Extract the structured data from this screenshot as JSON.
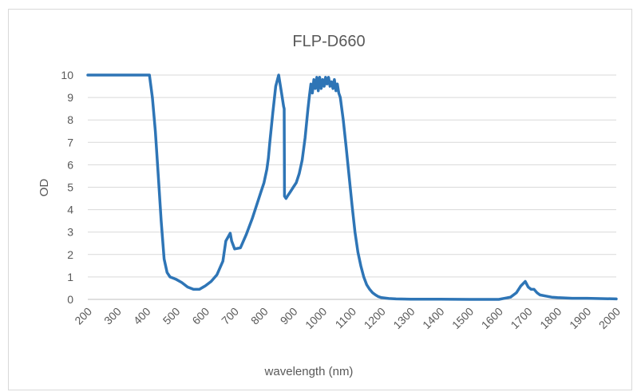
{
  "chart_data": {
    "type": "line",
    "title": "FLP-D660",
    "xlabel": "wavelength (nm)",
    "ylabel": "OD",
    "xlim": [
      200,
      2000
    ],
    "ylim": [
      0,
      10
    ],
    "x_ticks": [
      200,
      300,
      400,
      500,
      600,
      700,
      800,
      900,
      1000,
      1100,
      1200,
      1300,
      1400,
      1500,
      1600,
      1700,
      1800,
      1900,
      2000
    ],
    "y_ticks": [
      0,
      1,
      2,
      3,
      4,
      5,
      6,
      7,
      8,
      9,
      10
    ],
    "grid": "horizontal",
    "legend": "none",
    "series": [
      {
        "color": "#2e75b6",
        "x": [
          200,
          410,
          420,
          430,
          440,
          450,
          460,
          470,
          480,
          490,
          500,
          520,
          540,
          560,
          580,
          600,
          620,
          640,
          660,
          670,
          685,
          690,
          700,
          720,
          740,
          760,
          780,
          790,
          800,
          810,
          815,
          820,
          830,
          840,
          850,
          860,
          867,
          869,
          870,
          875,
          880,
          890,
          900,
          910,
          920,
          930,
          940,
          950,
          955,
          960,
          965,
          970,
          975,
          980,
          985,
          990,
          995,
          1000,
          1005,
          1010,
          1015,
          1020,
          1025,
          1030,
          1035,
          1040,
          1045,
          1050,
          1055,
          1060,
          1070,
          1080,
          1090,
          1100,
          1110,
          1120,
          1130,
          1140,
          1150,
          1160,
          1170,
          1180,
          1190,
          1200,
          1225,
          1250,
          1300,
          1350,
          1400,
          1500,
          1600,
          1640,
          1660,
          1675,
          1690,
          1700,
          1710,
          1720,
          1730,
          1740,
          1760,
          1780,
          1800,
          1850,
          1900,
          2000
        ],
        "values": [
          10,
          10,
          9.0,
          7.5,
          5.5,
          3.5,
          1.8,
          1.2,
          1.0,
          0.95,
          0.9,
          0.75,
          0.55,
          0.45,
          0.45,
          0.6,
          0.8,
          1.1,
          1.7,
          2.6,
          2.95,
          2.6,
          2.25,
          2.3,
          2.9,
          3.6,
          4.4,
          4.8,
          5.2,
          5.8,
          6.3,
          7.0,
          8.3,
          9.5,
          10.0,
          9.2,
          8.6,
          8.5,
          4.6,
          4.5,
          4.6,
          4.8,
          5.0,
          5.2,
          5.6,
          6.2,
          7.2,
          8.5,
          9.1,
          9.6,
          9.2,
          9.8,
          9.4,
          9.9,
          9.3,
          9.9,
          9.4,
          9.8,
          9.5,
          9.9,
          9.6,
          9.9,
          9.5,
          9.7,
          9.4,
          9.8,
          9.3,
          9.6,
          9.2,
          9.0,
          8.0,
          6.8,
          5.5,
          4.2,
          3.0,
          2.1,
          1.5,
          1.0,
          0.65,
          0.45,
          0.3,
          0.2,
          0.12,
          0.08,
          0.04,
          0.02,
          0.01,
          0.01,
          0.01,
          0.0,
          0.0,
          0.1,
          0.3,
          0.6,
          0.8,
          0.55,
          0.45,
          0.45,
          0.3,
          0.2,
          0.15,
          0.1,
          0.08,
          0.05,
          0.05,
          0.02
        ]
      }
    ]
  }
}
